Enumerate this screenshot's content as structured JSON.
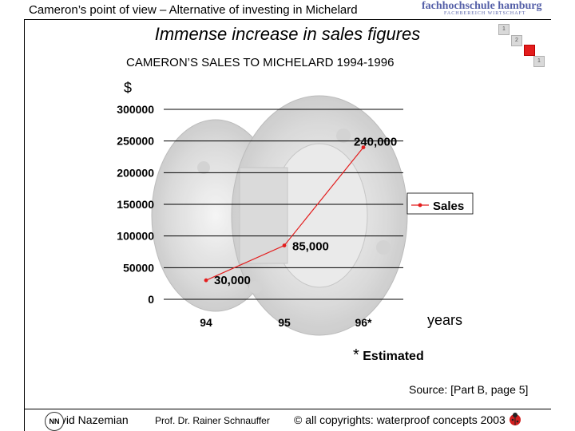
{
  "header": {
    "title": "Cameron’s point of view – Alternative of investing in Michelard",
    "logo_main": "fachhochschule hamburg",
    "logo_sub": "FACHBEREICH WIRTSCHAFT"
  },
  "slide": {
    "title": "Immense increase in sales figures"
  },
  "nav": {
    "items": [
      "1",
      "2",
      "",
      "1"
    ]
  },
  "chart_data": {
    "type": "line",
    "title": "CAMERON’S SALES TO MICHELARD 1994-1996",
    "ylabel": "$",
    "xlabel": "years",
    "categories": [
      "94",
      "95",
      "96*"
    ],
    "series": [
      {
        "name": "Sales",
        "values": [
          30000,
          85000,
          240000
        ],
        "labels": [
          "30,000",
          "85,000",
          "240,000"
        ],
        "color": "#e31d1d"
      }
    ],
    "y_ticks": [
      "0",
      "50000",
      "100000",
      "150000",
      "200000",
      "250000",
      "300000"
    ],
    "ylim": [
      0,
      300000
    ],
    "grid": "horizontal",
    "legend": "right"
  },
  "footnote": {
    "star": "*",
    "text": "Estimated"
  },
  "source": "Source: [Part B, page 5]",
  "footer": {
    "author": "David Nazemian",
    "professor": "Prof. Dr. Rainer Schnauffer",
    "copyright": "© all copyrights: waterproof concepts 2003",
    "author_logo": "NN"
  }
}
